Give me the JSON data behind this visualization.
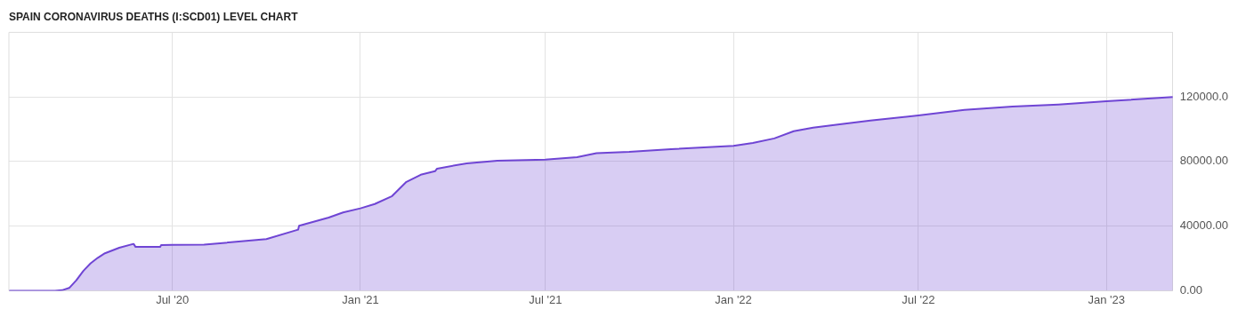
{
  "chart_data": {
    "type": "area",
    "title": "SPAIN CORONAVIRUS DEATHS (I:SCD01) LEVEL CHART",
    "x": [
      "2020-01-23",
      "2020-03-08",
      "2020-03-15",
      "2020-03-22",
      "2020-03-29",
      "2020-04-05",
      "2020-04-12",
      "2020-04-19",
      "2020-04-26",
      "2020-05-10",
      "2020-05-24",
      "2020-05-26",
      "2020-06-19",
      "2020-06-20",
      "2020-07-01",
      "2020-08-01",
      "2020-10-01",
      "2020-11-01",
      "2020-11-02",
      "2020-12-01",
      "2020-12-15",
      "2021-01-01",
      "2021-01-15",
      "2021-02-01",
      "2021-02-15",
      "2021-03-01",
      "2021-03-15",
      "2021-03-17",
      "2021-04-15",
      "2021-05-15",
      "2021-07-01",
      "2021-08-01",
      "2021-08-20",
      "2021-09-21",
      "2021-11-01",
      "2022-01-01",
      "2022-01-20",
      "2022-02-10",
      "2022-03-01",
      "2022-03-20",
      "2022-04-15",
      "2022-05-15",
      "2022-07-01",
      "2022-08-15",
      "2022-10-01",
      "2022-11-15",
      "2023-01-01",
      "2023-03-07"
    ],
    "series": [
      {
        "color": "#6f45d4",
        "values": [
          0,
          0,
          300,
          1700,
          6500,
          12400,
          17000,
          20400,
          23200,
          26600,
          29000,
          27100,
          27100,
          28300,
          28400,
          28500,
          32000,
          37800,
          40200,
          45300,
          48500,
          51000,
          53700,
          58600,
          67400,
          71800,
          74000,
          75600,
          78900,
          80500,
          81200,
          82700,
          85200,
          86000,
          87700,
          89700,
          91500,
          94300,
          98800,
          101000,
          103000,
          105400,
          108500,
          112000,
          114000,
          115300,
          117300,
          120000
        ]
      }
    ],
    "xlim": [
      "2020-01-23",
      "2023-03-07"
    ],
    "xticks": [
      {
        "value": "2020-07-01",
        "label": "Jul '20"
      },
      {
        "value": "2021-01-01",
        "label": "Jan '21"
      },
      {
        "value": "2021-07-01",
        "label": "Jul '21"
      },
      {
        "value": "2022-01-01",
        "label": "Jan '22"
      },
      {
        "value": "2022-07-01",
        "label": "Jul '22"
      },
      {
        "value": "2023-01-01",
        "label": "Jan '23"
      }
    ],
    "ylim": [
      0,
      160000
    ],
    "yticks": [
      {
        "value": 0,
        "label": "0.00"
      },
      {
        "value": 40000,
        "label": "40000.00"
      },
      {
        "value": 80000,
        "label": "80000.00"
      },
      {
        "value": 120000,
        "label": "120000.0"
      }
    ],
    "grid": true,
    "marker": "none",
    "line_style": "solid"
  }
}
